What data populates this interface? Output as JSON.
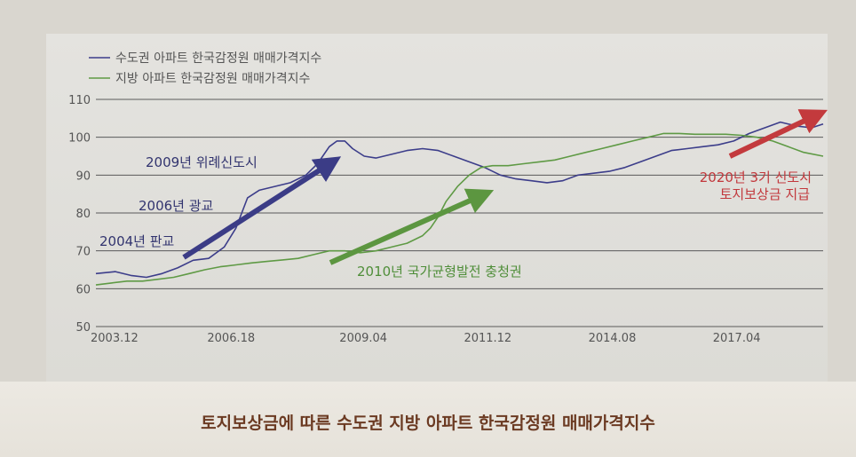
{
  "caption": "토지보상금에 따른 수도권 지방 아파트 한국감정원 매매가격지수",
  "chart_data": {
    "type": "line",
    "title": "토지보상금에 따른 수도권 지방 아파트 한국감정원 매매가격지수",
    "xlabel": "",
    "ylabel": "",
    "ylim": [
      50,
      110
    ],
    "yticks": [
      50,
      60,
      70,
      80,
      90,
      100,
      110
    ],
    "xlim": [
      0,
      187
    ],
    "x_tick_labels": [
      {
        "x": 0,
        "label": "2003.12"
      },
      {
        "x": 30,
        "label": "2006.18"
      },
      {
        "x": 64,
        "label": "2009.04"
      },
      {
        "x": 96,
        "label": "2011.12"
      },
      {
        "x": 128,
        "label": "2014.08"
      },
      {
        "x": 160,
        "label": "2017.04"
      }
    ],
    "grid": true,
    "legend_position": "top-left",
    "series": [
      {
        "name": "수도권 아파트 한국감정원 매매가격지수",
        "color": "#3c3d8a",
        "points": [
          [
            0,
            64
          ],
          [
            5,
            64.5
          ],
          [
            9,
            63.5
          ],
          [
            13,
            63
          ],
          [
            17,
            64
          ],
          [
            21,
            65.5
          ],
          [
            25,
            67.5
          ],
          [
            29,
            68
          ],
          [
            33,
            71
          ],
          [
            36,
            76
          ],
          [
            39,
            84
          ],
          [
            42,
            86
          ],
          [
            46,
            87
          ],
          [
            50,
            88
          ],
          [
            54,
            90
          ],
          [
            57,
            93
          ],
          [
            60,
            97.5
          ],
          [
            62,
            99
          ],
          [
            64,
            99
          ],
          [
            66,
            97
          ],
          [
            69,
            95
          ],
          [
            72,
            94.5
          ],
          [
            76,
            95.5
          ],
          [
            80,
            96.5
          ],
          [
            84,
            97
          ],
          [
            88,
            96.5
          ],
          [
            92,
            95
          ],
          [
            96,
            93.5
          ],
          [
            100,
            92
          ],
          [
            104,
            90
          ],
          [
            108,
            89
          ],
          [
            112,
            88.5
          ],
          [
            116,
            88
          ],
          [
            120,
            88.5
          ],
          [
            124,
            90
          ],
          [
            128,
            90.5
          ],
          [
            132,
            91
          ],
          [
            136,
            92
          ],
          [
            140,
            93.5
          ],
          [
            144,
            95
          ],
          [
            148,
            96.5
          ],
          [
            152,
            97
          ],
          [
            156,
            97.5
          ],
          [
            160,
            98
          ],
          [
            164,
            99
          ],
          [
            168,
            101
          ],
          [
            172,
            102.5
          ],
          [
            176,
            104
          ],
          [
            180,
            103
          ],
          [
            184,
            102.5
          ],
          [
            187,
            103.5
          ]
        ]
      },
      {
        "name": "지방 아파트 한국감정원 매매가격지수",
        "color": "#5f9a45",
        "points": [
          [
            0,
            61
          ],
          [
            4,
            61.5
          ],
          [
            8,
            62
          ],
          [
            12,
            62
          ],
          [
            16,
            62.5
          ],
          [
            20,
            63
          ],
          [
            24,
            64
          ],
          [
            28,
            65
          ],
          [
            32,
            65.8
          ],
          [
            36,
            66.3
          ],
          [
            40,
            66.8
          ],
          [
            44,
            67.2
          ],
          [
            48,
            67.6
          ],
          [
            52,
            68
          ],
          [
            56,
            69
          ],
          [
            60,
            70
          ],
          [
            64,
            70
          ],
          [
            68,
            69.5
          ],
          [
            72,
            70
          ],
          [
            76,
            71
          ],
          [
            80,
            72
          ],
          [
            84,
            74
          ],
          [
            86,
            76
          ],
          [
            88,
            79
          ],
          [
            90,
            83
          ],
          [
            93,
            87
          ],
          [
            96,
            90
          ],
          [
            99,
            92
          ],
          [
            102,
            92.5
          ],
          [
            106,
            92.5
          ],
          [
            110,
            93
          ],
          [
            114,
            93.5
          ],
          [
            118,
            94
          ],
          [
            122,
            95
          ],
          [
            126,
            96
          ],
          [
            130,
            97
          ],
          [
            134,
            98
          ],
          [
            138,
            99
          ],
          [
            142,
            100
          ],
          [
            146,
            101
          ],
          [
            150,
            101
          ],
          [
            154,
            100.8
          ],
          [
            158,
            100.8
          ],
          [
            162,
            100.8
          ],
          [
            166,
            100.5
          ],
          [
            170,
            100
          ],
          [
            174,
            99
          ],
          [
            178,
            97.5
          ],
          [
            182,
            96
          ],
          [
            187,
            95
          ]
        ]
      }
    ],
    "annotations": [
      {
        "text": "2004년 판교",
        "color": "#32346f"
      },
      {
        "text": "2006년 광교",
        "color": "#32346f"
      },
      {
        "text": "2009년 위례신도시",
        "color": "#32346f"
      },
      {
        "text": "2010년 국가균형발전 충청권",
        "color": "#4f8e39"
      },
      {
        "text": "2020년 3기 신도시",
        "color": "#c2383c"
      },
      {
        "text": "토지보상금 지급",
        "color": "#c2383c"
      }
    ]
  }
}
